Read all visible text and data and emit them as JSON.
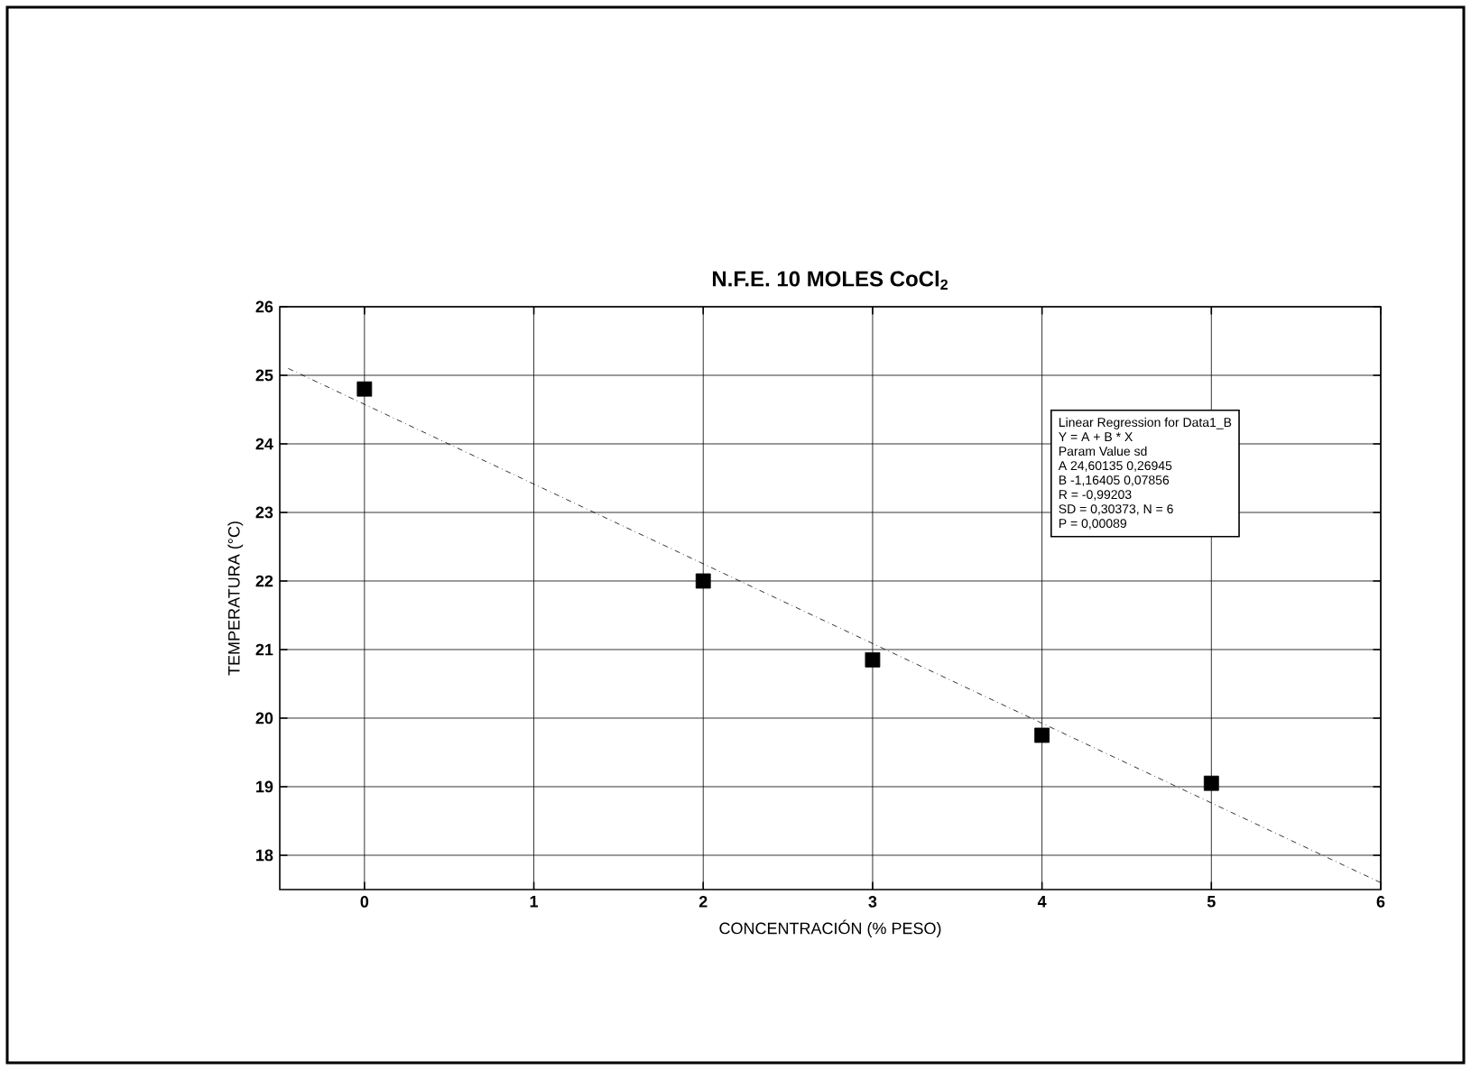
{
  "chart_data": {
    "type": "scatter",
    "title": "N.F.E. 10 MOLES CoCl$_{2}$",
    "xlabel": "CONCENTRACIÓN (% PESO)",
    "ylabel": "TEMPERATURA (°C)",
    "x": [
      0,
      2,
      3,
      4,
      5
    ],
    "series": [
      {
        "color": "#000000",
        "values": [
          24.8,
          22.0,
          20.85,
          19.75,
          19.05
        ]
      },
      {
        "type": "line",
        "marker": "none",
        "line_style": "dashed",
        "color": "#000000",
        "x": [
          -0.45,
          6
        ],
        "values": [
          25.1,
          17.6
        ]
      }
    ],
    "marker": "square",
    "xlim": [
      -0.5,
      6
    ],
    "ylim": [
      17.5,
      26
    ],
    "xticks": [
      0,
      1,
      2,
      3,
      4,
      5,
      6
    ],
    "yticks": [
      18,
      19,
      20,
      21,
      22,
      23,
      24,
      25,
      26
    ],
    "grid": true,
    "annotations": [
      "Linear Regression for Data1_B",
      "Y = A + B * X",
      "Param Value sd",
      "A 24,60135 0,26945",
      "B -1,16405 0,07856",
      "R = -0,99203",
      "SD = 0,30373, N = 6",
      "P = 0,00089"
    ]
  }
}
